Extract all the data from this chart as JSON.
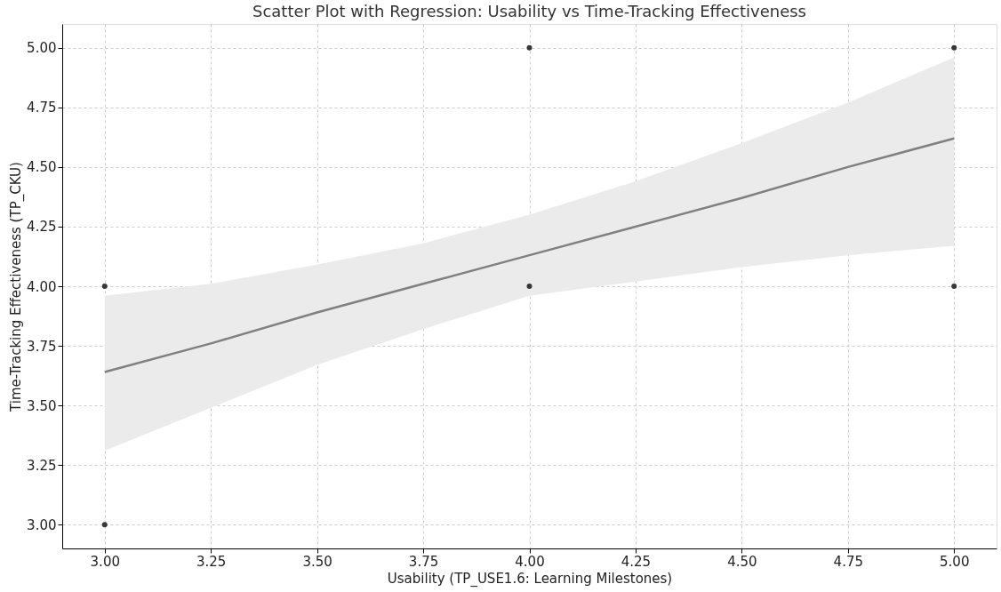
{
  "chart_data": {
    "type": "scatter",
    "title": "Scatter Plot with Regression: Usability vs Time-Tracking Effectiveness",
    "xlabel": "Usability (TP_USE1.6: Learning Milestones)",
    "ylabel": "Time-Tracking Effectiveness (TP_CKU)",
    "series": [
      {
        "color": "#222222",
        "marker": "circle",
        "x": [
          3,
          3,
          4,
          4,
          5,
          5
        ],
        "values": [
          4,
          3,
          5,
          4,
          5,
          4
        ]
      },
      {
        "type": "line",
        "color": "#808080",
        "x": [
          3,
          3.25,
          3.5,
          3.75,
          4,
          4.25,
          4.5,
          4.75,
          5
        ],
        "values": [
          3.64,
          3.76,
          3.89,
          4.01,
          4.13,
          4.25,
          4.37,
          4.5,
          4.62
        ],
        "lower": [
          3.31,
          3.49,
          3.67,
          3.82,
          3.96,
          4.02,
          4.08,
          4.13,
          4.17
        ],
        "upper": [
          3.96,
          4.01,
          4.09,
          4.18,
          4.3,
          4.44,
          4.6,
          4.77,
          4.96
        ]
      }
    ],
    "xlim": [
      2.9,
      5.1
    ],
    "ylim": [
      2.9,
      5.1
    ],
    "xticks": [
      {
        "value": 3,
        "label": "3.00"
      },
      {
        "value": 3.25,
        "label": "3.25"
      },
      {
        "value": 3.5,
        "label": "3.50"
      },
      {
        "value": 3.75,
        "label": "3.75"
      },
      {
        "value": 4,
        "label": "4.00"
      },
      {
        "value": 4.25,
        "label": "4.25"
      },
      {
        "value": 4.5,
        "label": "4.50"
      },
      {
        "value": 4.75,
        "label": "4.75"
      },
      {
        "value": 5,
        "label": "5.00"
      }
    ],
    "yticks": [
      {
        "value": 3,
        "label": "3.00"
      },
      {
        "value": 3.25,
        "label": "3.25"
      },
      {
        "value": 3.5,
        "label": "3.50"
      },
      {
        "value": 3.75,
        "label": "3.75"
      },
      {
        "value": 4,
        "label": "4.00"
      },
      {
        "value": 4.25,
        "label": "4.25"
      },
      {
        "value": 4.5,
        "label": "4.50"
      },
      {
        "value": 4.75,
        "label": "4.75"
      },
      {
        "value": 5,
        "label": "5.00"
      }
    ],
    "grid": true,
    "line_style": "solid"
  }
}
